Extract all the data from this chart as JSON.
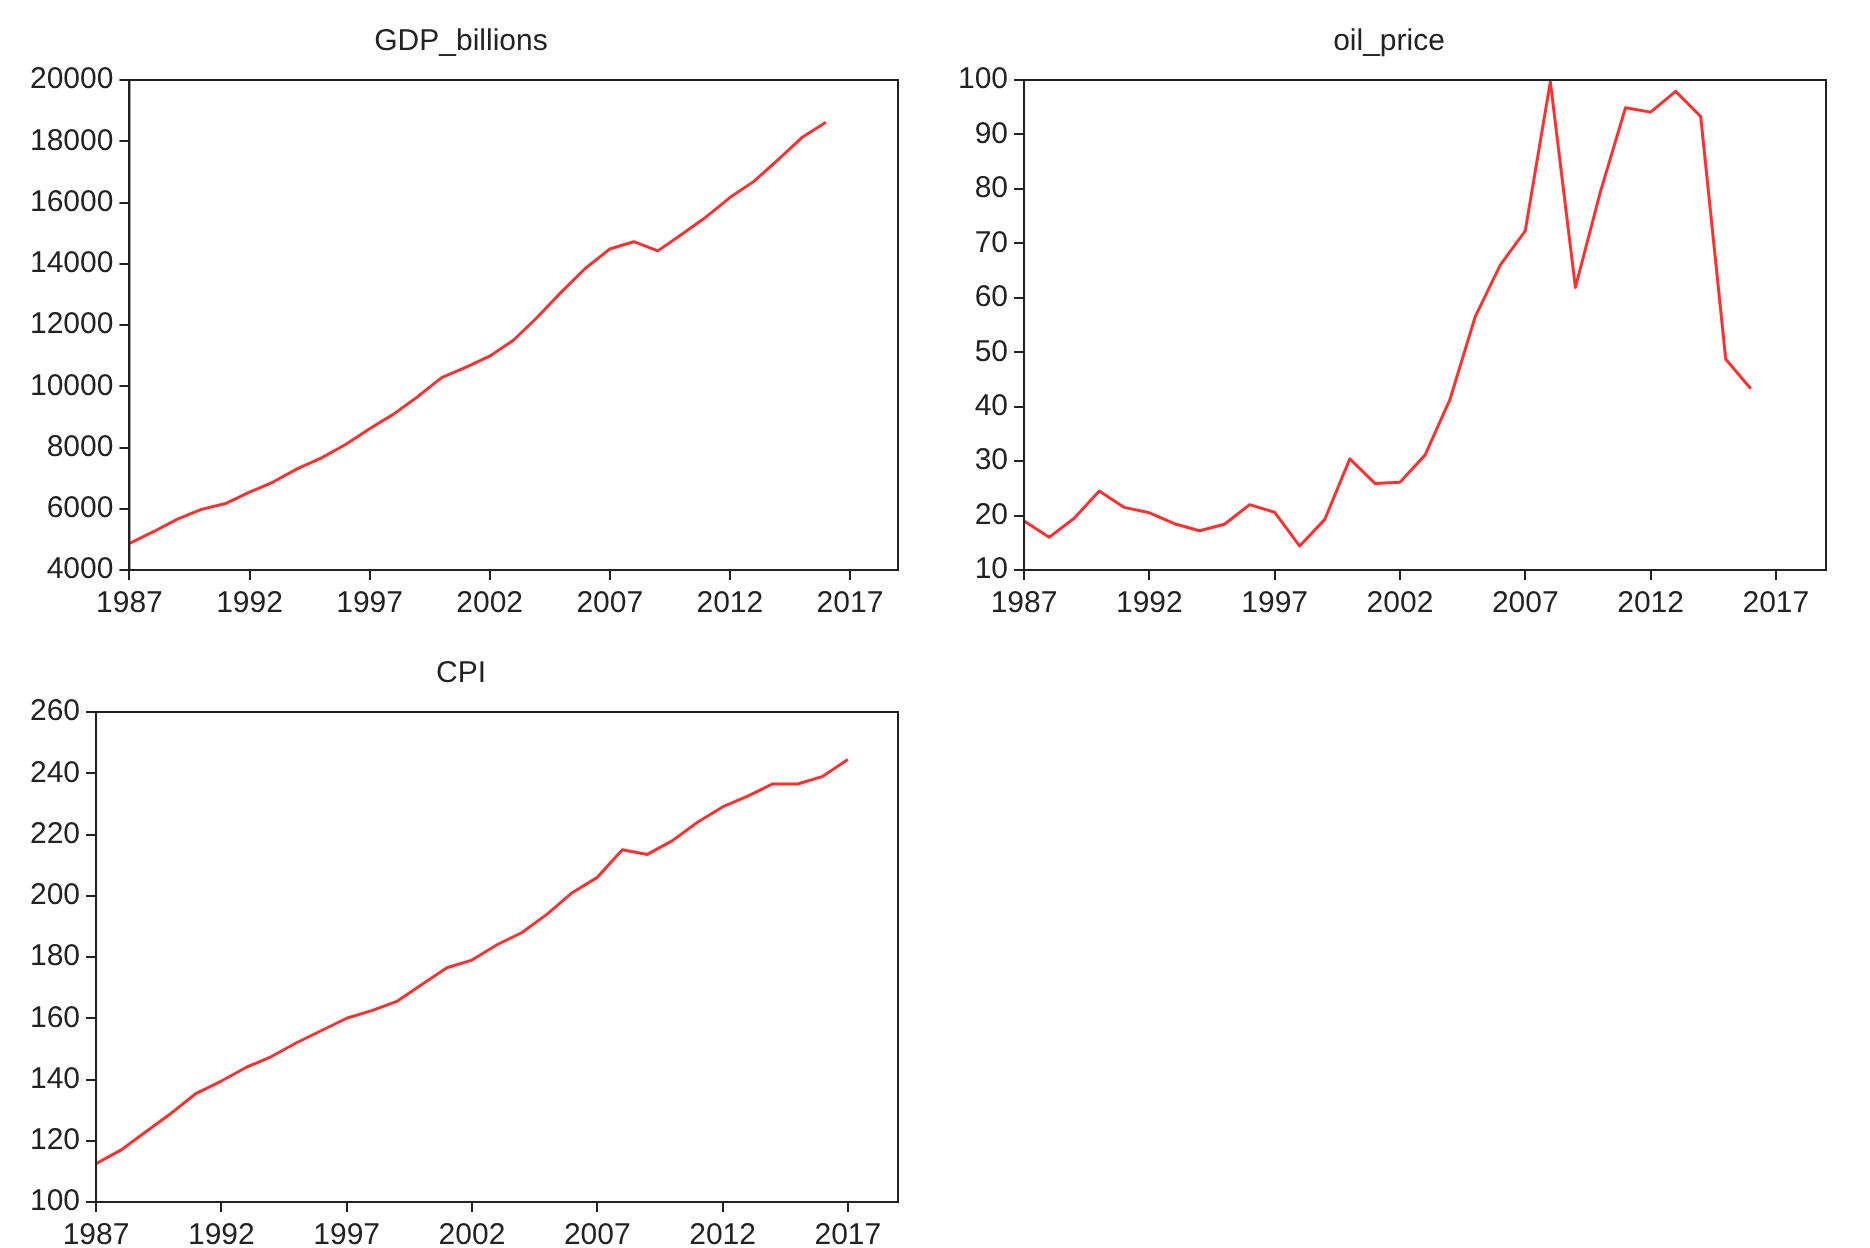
{
  "chart_data": [
    {
      "type": "line",
      "title": "GDP_billions",
      "x": [
        1987,
        1988,
        1989,
        1990,
        1991,
        1992,
        1993,
        1994,
        1995,
        1996,
        1997,
        1998,
        1999,
        2000,
        2001,
        2002,
        2003,
        2004,
        2005,
        2006,
        2007,
        2008,
        2009,
        2010,
        2011,
        2012,
        2013,
        2014,
        2015,
        2016
      ],
      "series": [
        {
          "color": "#ff3030",
          "values": [
            4870,
            5250,
            5660,
            5980,
            6170,
            6540,
            6880,
            7310,
            7660,
            8100,
            8610,
            9090,
            9660,
            10280,
            10620,
            10980,
            11510,
            12270,
            13090,
            13860,
            14480,
            14720,
            14420,
            14960,
            15520,
            16160,
            16690,
            17390,
            18120,
            18620
          ]
        }
      ],
      "xlim": [
        1987,
        2019
      ],
      "xticks": [
        1987,
        1992,
        1997,
        2002,
        2007,
        2012,
        2017
      ],
      "ylim": [
        4000,
        20000
      ],
      "yticks": [
        4000,
        6000,
        8000,
        10000,
        12000,
        14000,
        16000,
        18000,
        20000
      ],
      "grid": false,
      "legend": false,
      "marker": "none",
      "line_style": "solid"
    },
    {
      "type": "line",
      "title": "oil_price",
      "x": [
        1987,
        1988,
        1989,
        1990,
        1991,
        1992,
        1993,
        1994,
        1995,
        1996,
        1997,
        1998,
        1999,
        2000,
        2001,
        2002,
        2003,
        2004,
        2005,
        2006,
        2007,
        2008,
        2009,
        2010,
        2011,
        2012,
        2013,
        2014,
        2015,
        2016
      ],
      "series": [
        {
          "color": "#ff3030",
          "values": [
            19,
            16,
            19.5,
            24.5,
            21.5,
            20.5,
            18.5,
            17.2,
            18.4,
            22,
            20.6,
            14.4,
            19.3,
            30.4,
            25.9,
            26.1,
            31.1,
            41.4,
            56.5,
            66,
            72.3,
            99.7,
            61.9,
            79.5,
            94.9,
            94.1,
            97.9,
            93.3,
            48.7,
            43.3
          ]
        }
      ],
      "xlim": [
        1987,
        2019
      ],
      "xticks": [
        1987,
        1992,
        1997,
        2002,
        2007,
        2012,
        2017
      ],
      "ylim": [
        10,
        100
      ],
      "yticks": [
        10,
        20,
        30,
        40,
        50,
        60,
        70,
        80,
        90,
        100
      ],
      "grid": false,
      "legend": false,
      "marker": "none",
      "line_style": "solid"
    },
    {
      "type": "line",
      "title": "CPI",
      "x": [
        1987,
        1988,
        1989,
        1990,
        1991,
        1992,
        1993,
        1994,
        1995,
        1996,
        1997,
        1998,
        1999,
        2000,
        2001,
        2002,
        2003,
        2004,
        2005,
        2006,
        2007,
        2008,
        2009,
        2010,
        2011,
        2012,
        2013,
        2014,
        2015,
        2016,
        2017
      ],
      "series": [
        {
          "color": "#ff3030",
          "values": [
            112.5,
            117,
            123,
            129,
            135.5,
            139.5,
            144,
            147.5,
            152,
            156,
            160,
            162.5,
            165.5,
            171,
            176.5,
            179,
            184,
            188,
            194,
            201,
            206,
            215,
            213.5,
            218,
            224,
            229,
            232.5,
            236.5,
            236.5,
            239,
            244.5
          ]
        }
      ],
      "xlim": [
        1987,
        2019
      ],
      "xticks": [
        1987,
        1992,
        1997,
        2002,
        2007,
        2012,
        2017
      ],
      "ylim": [
        100,
        260
      ],
      "yticks": [
        100,
        120,
        140,
        160,
        180,
        200,
        220,
        240,
        260
      ],
      "grid": false,
      "legend": false,
      "marker": "none",
      "line_style": "solid"
    }
  ]
}
